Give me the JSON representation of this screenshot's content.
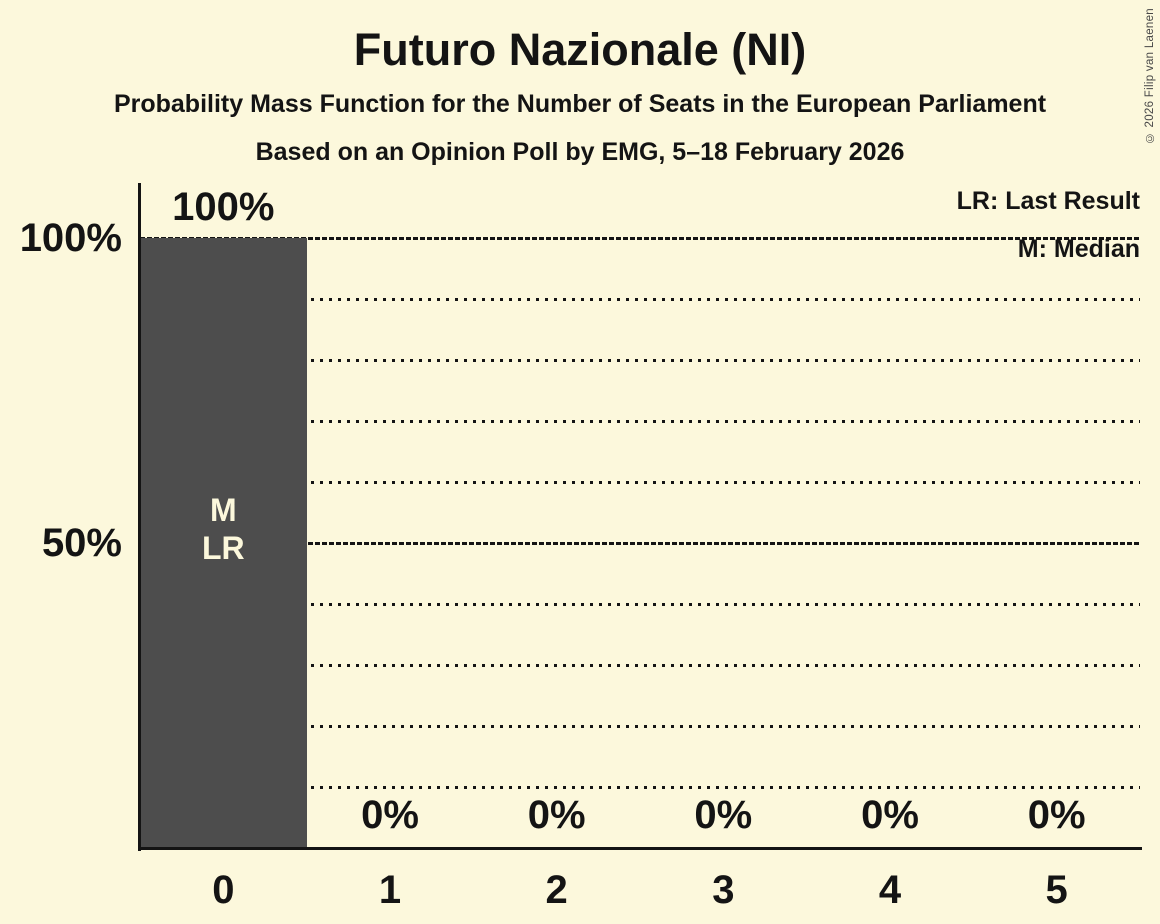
{
  "title": "Futuro Nazionale (NI)",
  "subtitle1": "Probability Mass Function for the Number of Seats in the European Parliament",
  "subtitle2": "Based on an Opinion Poll by EMG, 5–18 February 2026",
  "legend": {
    "lr": "LR: Last Result",
    "m": "M: Median"
  },
  "copyright": "© 2026 Filip van Laenen",
  "colors": {
    "background": "#FCF8DC",
    "bar": "#4D4D4D",
    "text": "#141414",
    "bar_annotation_text": "#FCF8DC"
  },
  "chart_data": {
    "type": "bar",
    "title": "Futuro Nazionale (NI)",
    "subtitle": "Probability Mass Function for the Number of Seats in the European Parliament",
    "note": "Based on an Opinion Poll by EMG, 5–18 February 2026",
    "categories": [
      "0",
      "1",
      "2",
      "3",
      "4",
      "5"
    ],
    "values": [
      100,
      0,
      0,
      0,
      0,
      0
    ],
    "value_labels": [
      "100%",
      "0%",
      "0%",
      "0%",
      "0%",
      "0%"
    ],
    "xlabel": "",
    "ylabel": "",
    "ylim": [
      0,
      100
    ],
    "y_ticks": [
      {
        "pct": 100,
        "label": "100%"
      },
      {
        "pct": 50,
        "label": "50%"
      }
    ],
    "solid_gridlines_pct": [
      100,
      50
    ],
    "dotted_gridlines_pct": [
      90,
      80,
      70,
      60,
      40,
      30,
      20,
      10
    ],
    "grid": "horizontal, dotted minor every 10%, dense-dashed major at 50% and 100%",
    "legend_position": "top-right",
    "legend_entries": [
      "LR: Last Result",
      "M: Median"
    ],
    "annotations": [
      {
        "category": "0",
        "lines": [
          "M",
          "LR"
        ]
      }
    ]
  }
}
